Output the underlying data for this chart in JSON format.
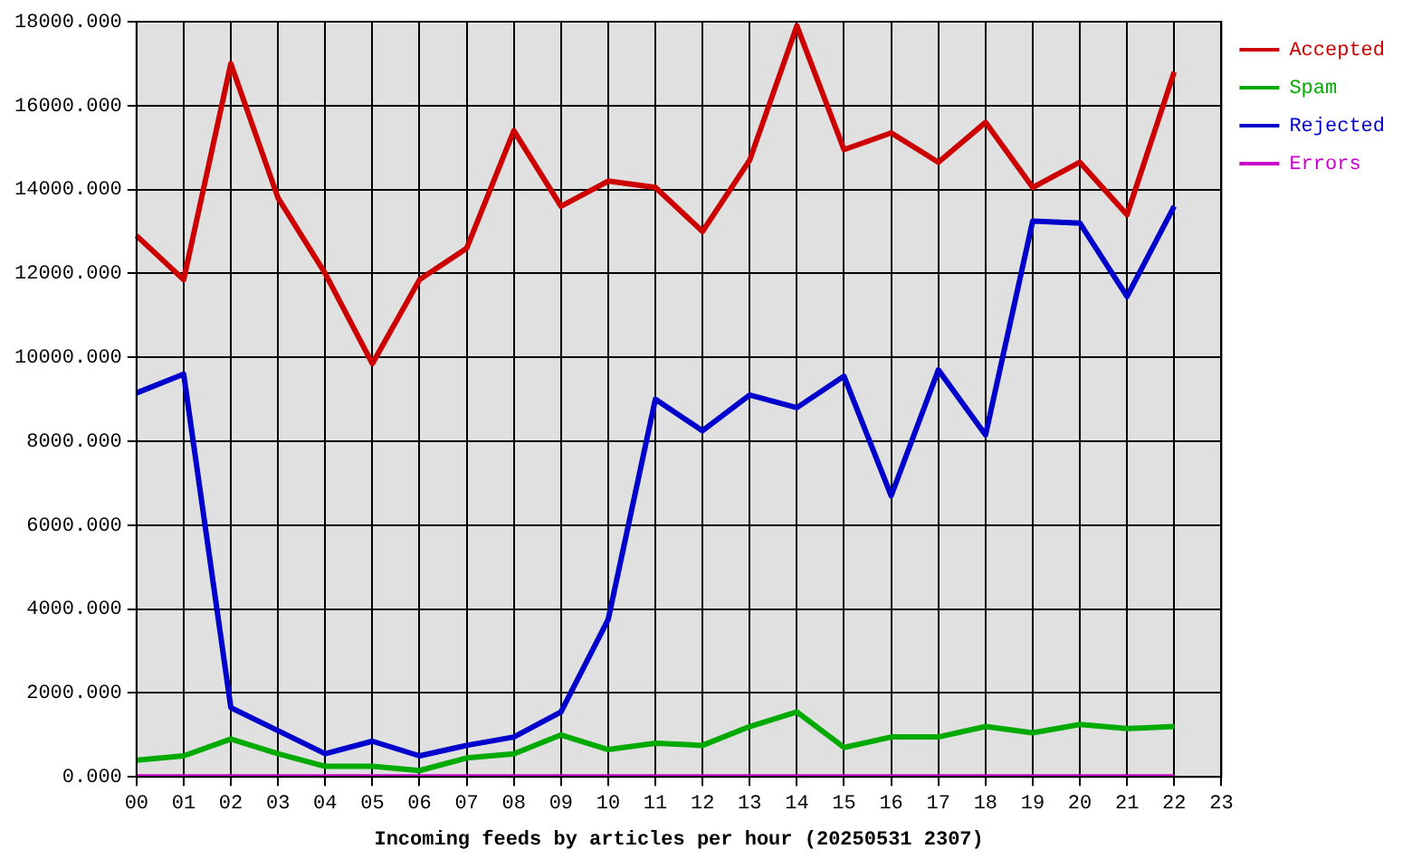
{
  "chart_data": {
    "type": "line",
    "xlabel": "Incoming feeds by articles per hour (20250531 2307)",
    "categories": [
      "00",
      "01",
      "02",
      "03",
      "04",
      "05",
      "06",
      "07",
      "08",
      "09",
      "10",
      "11",
      "12",
      "13",
      "14",
      "15",
      "16",
      "17",
      "18",
      "19",
      "20",
      "21",
      "22",
      "23"
    ],
    "series": [
      {
        "name": "Accepted",
        "color": "#cc0000",
        "values": [
          12900,
          11850,
          17000,
          13800,
          12000,
          9850,
          11850,
          12600,
          15400,
          13600,
          14200,
          14050,
          13000,
          14700,
          17900,
          14950,
          15350,
          14650,
          15600,
          14050,
          14650,
          13400,
          16800,
          null
        ]
      },
      {
        "name": "Spam",
        "color": "#00aa00",
        "values": [
          400,
          500,
          900,
          550,
          250,
          250,
          150,
          450,
          550,
          1000,
          650,
          800,
          750,
          1200,
          1550,
          700,
          950,
          950,
          1200,
          1050,
          1250,
          1150,
          1200,
          null
        ]
      },
      {
        "name": "Rejected",
        "color": "#0000cc",
        "values": [
          9150,
          9600,
          1650,
          1100,
          550,
          850,
          500,
          750,
          950,
          1550,
          3750,
          9000,
          8250,
          9100,
          8800,
          9550,
          6700,
          9700,
          8150,
          13250,
          13200,
          11450,
          13600,
          null
        ]
      },
      {
        "name": "Errors",
        "color": "#cc00cc",
        "values": [
          0,
          0,
          0,
          0,
          0,
          0,
          0,
          0,
          0,
          0,
          0,
          0,
          0,
          0,
          0,
          0,
          0,
          0,
          0,
          0,
          0,
          0,
          0,
          null
        ]
      }
    ],
    "ylim": [
      0,
      18000
    ],
    "yticks": [
      {
        "value": 0,
        "label": "0.000"
      },
      {
        "value": 2000,
        "label": "2000.000"
      },
      {
        "value": 4000,
        "label": "4000.000"
      },
      {
        "value": 6000,
        "label": "6000.000"
      },
      {
        "value": 8000,
        "label": "8000.000"
      },
      {
        "value": 10000,
        "label": "10000.000"
      },
      {
        "value": 12000,
        "label": "12000.000"
      },
      {
        "value": 14000,
        "label": "14000.000"
      },
      {
        "value": 16000,
        "label": "16000.000"
      },
      {
        "value": 18000,
        "label": "18000.000"
      }
    ],
    "grid": true,
    "legend": "top right",
    "marker": "none",
    "line_style": "solid"
  }
}
